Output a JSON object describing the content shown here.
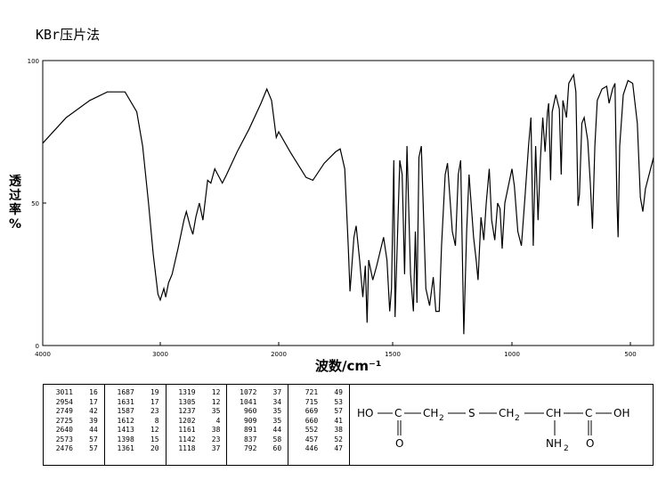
{
  "title": "KBr压片法",
  "chart_data": {
    "type": "line",
    "title": "KBr压片法",
    "xlabel": "波数/cm⁻¹",
    "ylabel": [
      "透",
      "过",
      "率",
      "%"
    ],
    "xlim": [
      4000,
      400
    ],
    "ylim": [
      0,
      100
    ],
    "x_reversed": true,
    "xticks": [
      "4000",
      "3000",
      "2000",
      "1500",
      "1000",
      "500"
    ],
    "yticks": [
      "100",
      "50",
      "0"
    ],
    "series": [
      {
        "points": [
          [
            4000,
            71
          ],
          [
            3800,
            80
          ],
          [
            3600,
            86
          ],
          [
            3450,
            89
          ],
          [
            3300,
            89
          ],
          [
            3200,
            82
          ],
          [
            3150,
            70
          ],
          [
            3100,
            50
          ],
          [
            3060,
            32
          ],
          [
            3020,
            18
          ],
          [
            3000,
            16
          ],
          [
            2970,
            20
          ],
          [
            2954,
            17
          ],
          [
            2930,
            22
          ],
          [
            2900,
            25
          ],
          [
            2850,
            34
          ],
          [
            2800,
            44
          ],
          [
            2780,
            47
          ],
          [
            2749,
            42
          ],
          [
            2725,
            39
          ],
          [
            2700,
            45
          ],
          [
            2670,
            50
          ],
          [
            2640,
            44
          ],
          [
            2600,
            58
          ],
          [
            2573,
            57
          ],
          [
            2540,
            62
          ],
          [
            2476,
            57
          ],
          [
            2440,
            60
          ],
          [
            2350,
            68
          ],
          [
            2250,
            76
          ],
          [
            2150,
            85
          ],
          [
            2100,
            90
          ],
          [
            2060,
            86
          ],
          [
            2020,
            73
          ],
          [
            2000,
            75
          ],
          [
            1950,
            68
          ],
          [
            1880,
            59
          ],
          [
            1850,
            58
          ],
          [
            1800,
            64
          ],
          [
            1750,
            68
          ],
          [
            1730,
            69
          ],
          [
            1710,
            62
          ],
          [
            1695,
            35
          ],
          [
            1687,
            19
          ],
          [
            1670,
            38
          ],
          [
            1660,
            42
          ],
          [
            1645,
            30
          ],
          [
            1631,
            17
          ],
          [
            1620,
            28
          ],
          [
            1612,
            8
          ],
          [
            1605,
            30
          ],
          [
            1587,
            23
          ],
          [
            1570,
            28
          ],
          [
            1540,
            38
          ],
          [
            1525,
            30
          ],
          [
            1513,
            12
          ],
          [
            1505,
            20
          ],
          [
            1495,
            65
          ],
          [
            1490,
            10
          ],
          [
            1470,
            65
          ],
          [
            1460,
            60
          ],
          [
            1450,
            25
          ],
          [
            1440,
            70
          ],
          [
            1425,
            25
          ],
          [
            1413,
            12
          ],
          [
            1405,
            40
          ],
          [
            1398,
            15
          ],
          [
            1390,
            66
          ],
          [
            1380,
            70
          ],
          [
            1361,
            20
          ],
          [
            1345,
            14
          ],
          [
            1330,
            24
          ],
          [
            1319,
            12
          ],
          [
            1305,
            12
          ],
          [
            1295,
            35
          ],
          [
            1280,
            60
          ],
          [
            1270,
            64
          ],
          [
            1250,
            40
          ],
          [
            1237,
            35
          ],
          [
            1225,
            60
          ],
          [
            1215,
            65
          ],
          [
            1202,
            4
          ],
          [
            1190,
            40
          ],
          [
            1180,
            60
          ],
          [
            1161,
            38
          ],
          [
            1150,
            30
          ],
          [
            1142,
            23
          ],
          [
            1130,
            45
          ],
          [
            1118,
            37
          ],
          [
            1108,
            50
          ],
          [
            1095,
            62
          ],
          [
            1085,
            44
          ],
          [
            1072,
            37
          ],
          [
            1060,
            50
          ],
          [
            1050,
            48
          ],
          [
            1041,
            34
          ],
          [
            1030,
            50
          ],
          [
            1010,
            58
          ],
          [
            1000,
            62
          ],
          [
            990,
            56
          ],
          [
            975,
            40
          ],
          [
            960,
            35
          ],
          [
            945,
            52
          ],
          [
            930,
            70
          ],
          [
            920,
            80
          ],
          [
            910,
            35
          ],
          [
            900,
            70
          ],
          [
            890,
            44
          ],
          [
            880,
            65
          ],
          [
            870,
            80
          ],
          [
            860,
            68
          ],
          [
            850,
            82
          ],
          [
            845,
            85
          ],
          [
            837,
            58
          ],
          [
            830,
            82
          ],
          [
            815,
            88
          ],
          [
            800,
            83
          ],
          [
            792,
            60
          ],
          [
            785,
            86
          ],
          [
            770,
            80
          ],
          [
            760,
            92
          ],
          [
            740,
            95
          ],
          [
            730,
            89
          ],
          [
            721,
            49
          ],
          [
            715,
            53
          ],
          [
            705,
            78
          ],
          [
            695,
            80
          ],
          [
            680,
            72
          ],
          [
            669,
            57
          ],
          [
            660,
            41
          ],
          [
            650,
            70
          ],
          [
            640,
            86
          ],
          [
            620,
            90
          ],
          [
            600,
            91
          ],
          [
            590,
            85
          ],
          [
            575,
            90
          ],
          [
            565,
            92
          ],
          [
            557,
            52
          ],
          [
            552,
            38
          ],
          [
            545,
            70
          ],
          [
            530,
            88
          ],
          [
            510,
            93
          ],
          [
            490,
            92
          ],
          [
            470,
            78
          ],
          [
            457,
            52
          ],
          [
            446,
            47
          ],
          [
            435,
            55
          ],
          [
            400,
            66
          ]
        ]
      }
    ]
  },
  "peak_table": [
    [
      [
        "3011",
        "16"
      ],
      [
        "2954",
        "17"
      ],
      [
        "2749",
        "42"
      ],
      [
        "2725",
        "39"
      ],
      [
        "2640",
        "44"
      ],
      [
        "2573",
        "57"
      ],
      [
        "2476",
        "57"
      ]
    ],
    [
      [
        "1687",
        "19"
      ],
      [
        "1631",
        "17"
      ],
      [
        "1587",
        "23"
      ],
      [
        "1612",
        "8"
      ],
      [
        "1413",
        "12"
      ],
      [
        "1398",
        "15"
      ],
      [
        "1361",
        "20"
      ]
    ],
    [
      [
        "1319",
        "12"
      ],
      [
        "1305",
        "12"
      ],
      [
        "1237",
        "35"
      ],
      [
        "1202",
        "4"
      ],
      [
        "1161",
        "38"
      ],
      [
        "1142",
        "23"
      ],
      [
        "1118",
        "37"
      ]
    ],
    [
      [
        "1072",
        "37"
      ],
      [
        "1041",
        "34"
      ],
      [
        "960",
        "35"
      ],
      [
        "909",
        "35"
      ],
      [
        "891",
        "44"
      ],
      [
        "837",
        "58"
      ],
      [
        "792",
        "60"
      ]
    ],
    [
      [
        "721",
        "49"
      ],
      [
        "715",
        "53"
      ],
      [
        "669",
        "57"
      ],
      [
        "660",
        "41"
      ],
      [
        "552",
        "38"
      ],
      [
        "457",
        "52"
      ],
      [
        "446",
        "47"
      ]
    ]
  ],
  "structure": {
    "ho": "HO",
    "c1": "C",
    "ch2a": "CH",
    "s": "S",
    "ch2b": "CH",
    "ch": "CH",
    "c2": "C",
    "oh": "OH",
    "o1": "O",
    "o2": "O",
    "nh2": "NH",
    "sub2": "2"
  }
}
